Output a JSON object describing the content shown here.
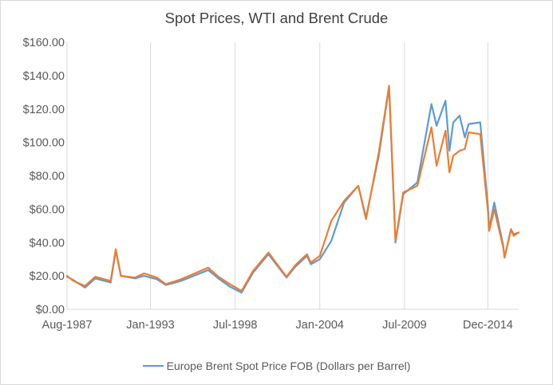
{
  "chart_data": {
    "type": "line",
    "title": "Spot Prices, WTI and Brent Crude",
    "xlabel": "",
    "ylabel": "",
    "ylim": [
      0,
      160
    ],
    "xlim": [
      "1987-08",
      "2016-12"
    ],
    "y_ticks": [
      0,
      20,
      40,
      60,
      80,
      100,
      120,
      140,
      160
    ],
    "y_tick_labels": [
      "$0.00",
      "$20.00",
      "$40.00",
      "$60.00",
      "$80.00",
      "$100.00",
      "$120.00",
      "$140.00",
      "$160.00"
    ],
    "x_ticks": [
      "1987-08",
      "1993-01",
      "1998-07",
      "2004-01",
      "2009-07",
      "2014-12"
    ],
    "x_tick_labels": [
      "Aug-1987",
      "Jan-1993",
      "Jul-1998",
      "Jan-2004",
      "Jul-2009",
      "Dec-2014"
    ],
    "grid": {
      "vertical": true,
      "horizontal": false
    },
    "legend": {
      "position": "bottom",
      "entries": [
        "Europe Brent Spot Price FOB (Dollars per Barrel)"
      ]
    },
    "series": [
      {
        "name": "Europe Brent Spot Price FOB (Dollars per Barrel)",
        "color": "#5b9bd5",
        "points": [
          [
            "1987-08",
            19.5
          ],
          [
            "1988-01",
            17.5
          ],
          [
            "1988-10",
            13.0
          ],
          [
            "1989-06",
            18.5
          ],
          [
            "1990-06",
            16.0
          ],
          [
            "1990-10",
            35.0
          ],
          [
            "1991-02",
            20.0
          ],
          [
            "1992-01",
            18.5
          ],
          [
            "1992-08",
            20.0
          ],
          [
            "1993-06",
            18.0
          ],
          [
            "1994-01",
            14.5
          ],
          [
            "1995-01",
            17.0
          ],
          [
            "1996-10",
            23.5
          ],
          [
            "1997-06",
            18.5
          ],
          [
            "1998-03",
            13.5
          ],
          [
            "1998-12",
            10.0
          ],
          [
            "1999-09",
            22.0
          ],
          [
            "2000-09",
            33.0
          ],
          [
            "2001-11",
            19.0
          ],
          [
            "2002-06",
            25.5
          ],
          [
            "2003-03",
            32.0
          ],
          [
            "2003-06",
            27.0
          ],
          [
            "2004-01",
            30.0
          ],
          [
            "2004-10",
            41.0
          ],
          [
            "2005-08",
            64.0
          ],
          [
            "2006-07",
            74.0
          ],
          [
            "2007-01",
            55.0
          ],
          [
            "2007-11",
            92.0
          ],
          [
            "2008-07",
            133.0
          ],
          [
            "2008-12",
            40.0
          ],
          [
            "2009-06",
            69.0
          ],
          [
            "2010-05",
            76.0
          ],
          [
            "2011-04",
            123.0
          ],
          [
            "2011-08",
            110.0
          ],
          [
            "2012-03",
            125.0
          ],
          [
            "2012-06",
            95.0
          ],
          [
            "2012-09",
            112.0
          ],
          [
            "2013-02",
            116.0
          ],
          [
            "2013-06",
            103.0
          ],
          [
            "2013-09",
            111.0
          ],
          [
            "2014-06",
            112.0
          ],
          [
            "2014-12",
            62.0
          ],
          [
            "2015-01",
            48.0
          ],
          [
            "2015-05",
            64.0
          ],
          [
            "2015-12",
            38.0
          ],
          [
            "2016-01",
            31.0
          ],
          [
            "2016-06",
            48.0
          ],
          [
            "2016-08",
            45.0
          ],
          [
            "2016-12",
            46.0
          ]
        ]
      },
      {
        "name": "",
        "color": "#ed7d31",
        "points": [
          [
            "1987-08",
            20.0
          ],
          [
            "1988-01",
            17.0
          ],
          [
            "1988-10",
            14.0
          ],
          [
            "1989-06",
            19.5
          ],
          [
            "1990-06",
            17.0
          ],
          [
            "1990-10",
            36.0
          ],
          [
            "1991-02",
            20.0
          ],
          [
            "1992-01",
            19.0
          ],
          [
            "1992-08",
            21.5
          ],
          [
            "1993-06",
            19.0
          ],
          [
            "1994-01",
            15.0
          ],
          [
            "1995-01",
            18.0
          ],
          [
            "1996-10",
            25.0
          ],
          [
            "1997-06",
            19.5
          ],
          [
            "1998-03",
            15.0
          ],
          [
            "1998-12",
            11.0
          ],
          [
            "1999-09",
            23.0
          ],
          [
            "2000-09",
            34.0
          ],
          [
            "2001-11",
            19.5
          ],
          [
            "2002-06",
            26.5
          ],
          [
            "2003-03",
            33.0
          ],
          [
            "2003-06",
            28.0
          ],
          [
            "2004-01",
            32.0
          ],
          [
            "2004-10",
            53.0
          ],
          [
            "2005-08",
            65.0
          ],
          [
            "2006-07",
            74.0
          ],
          [
            "2007-01",
            54.0
          ],
          [
            "2007-11",
            94.0
          ],
          [
            "2008-07",
            134.0
          ],
          [
            "2008-12",
            41.0
          ],
          [
            "2009-06",
            70.0
          ],
          [
            "2010-05",
            74.0
          ],
          [
            "2011-04",
            109.0
          ],
          [
            "2011-08",
            86.0
          ],
          [
            "2012-03",
            107.0
          ],
          [
            "2012-06",
            82.0
          ],
          [
            "2012-09",
            92.0
          ],
          [
            "2013-02",
            95.0
          ],
          [
            "2013-06",
            96.0
          ],
          [
            "2013-09",
            106.0
          ],
          [
            "2014-06",
            105.0
          ],
          [
            "2014-12",
            59.0
          ],
          [
            "2015-01",
            47.0
          ],
          [
            "2015-05",
            60.0
          ],
          [
            "2015-12",
            37.0
          ],
          [
            "2016-01",
            31.0
          ],
          [
            "2016-06",
            48.0
          ],
          [
            "2016-08",
            44.0
          ],
          [
            "2016-12",
            46.0
          ]
        ]
      }
    ]
  }
}
